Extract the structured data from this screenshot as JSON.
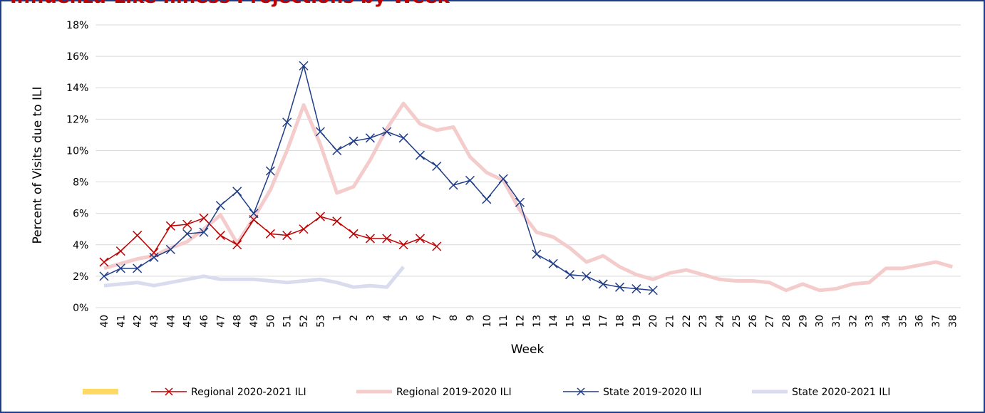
{
  "chart_data": {
    "type": "line",
    "title": "Influenza-Like Illness Projections by Week",
    "x_label": "Week",
    "y_label": "Percent of Visits due to ILI",
    "categories": [
      "40",
      "41",
      "42",
      "43",
      "44",
      "45",
      "46",
      "47",
      "48",
      "49",
      "50",
      "51",
      "52",
      "53",
      "1",
      "2",
      "3",
      "4",
      "5",
      "6",
      "7",
      "8",
      "9",
      "10",
      "11",
      "12",
      "13",
      "14",
      "15",
      "16",
      "17",
      "18",
      "19",
      "20",
      "21",
      "22",
      "23",
      "24",
      "25",
      "26",
      "27",
      "28",
      "29",
      "30",
      "31",
      "32",
      "33",
      "34",
      "35",
      "36",
      "37",
      "38"
    ],
    "ylim": [
      0,
      18
    ],
    "yticks": [
      {
        "value": 0,
        "label": "0%"
      },
      {
        "value": 2,
        "label": "2%"
      },
      {
        "value": 4,
        "label": "4%"
      },
      {
        "value": 6,
        "label": "6%"
      },
      {
        "value": 8,
        "label": "8%"
      },
      {
        "value": 10,
        "label": "10%"
      },
      {
        "value": 12,
        "label": "12%"
      },
      {
        "value": 14,
        "label": "14%"
      },
      {
        "value": 16,
        "label": "16%"
      },
      {
        "value": 18,
        "label": "18%"
      }
    ],
    "grid": true,
    "legend": "bottom",
    "series": [
      {
        "color": "#ffd966",
        "width": 8,
        "marker": false,
        "values": [
          null,
          null,
          null,
          null,
          null,
          null,
          null,
          null,
          null,
          null,
          null,
          null,
          null,
          null,
          null,
          null,
          null,
          null,
          null,
          null,
          null,
          null,
          null,
          null,
          null,
          null,
          null,
          null,
          null,
          null,
          null,
          null,
          null,
          null,
          null,
          null,
          null,
          null,
          null,
          null,
          null,
          null,
          null,
          null,
          null,
          null,
          null,
          null,
          null,
          null,
          null,
          null
        ]
      },
      {
        "name": "Regional 2020-2021 ILI",
        "color": "#c00000",
        "width": 1.5,
        "marker": true,
        "values": [
          2.9,
          3.6,
          4.6,
          3.5,
          5.2,
          5.3,
          5.7,
          4.6,
          4.0,
          5.6,
          4.7,
          4.6,
          5.0,
          5.8,
          5.5,
          4.7,
          4.4,
          4.4,
          4.0,
          4.4,
          3.9,
          null,
          null,
          null,
          null,
          null,
          null,
          null,
          null,
          null,
          null,
          null,
          null,
          null,
          null,
          null,
          null,
          null,
          null,
          null,
          null,
          null,
          null,
          null,
          null,
          null,
          null,
          null,
          null,
          null,
          null,
          null
        ]
      },
      {
        "name": "Regional 2019-2020 ILI",
        "color": "#f4cccc",
        "width": 5,
        "marker": false,
        "values": [
          2.5,
          2.8,
          3.1,
          3.3,
          3.8,
          4.2,
          5.0,
          5.9,
          4.1,
          5.7,
          7.5,
          10.0,
          12.9,
          10.4,
          7.3,
          7.7,
          9.4,
          11.4,
          13.0,
          11.7,
          11.3,
          11.5,
          9.6,
          8.6,
          8.1,
          6.2,
          4.8,
          4.5,
          3.8,
          2.9,
          3.3,
          2.6,
          2.1,
          1.8,
          2.2,
          2.4,
          2.1,
          1.8,
          1.7,
          1.7,
          1.6,
          1.1,
          1.5,
          1.1,
          1.2,
          1.5,
          1.6,
          2.5,
          2.5,
          2.7,
          2.9,
          2.6
        ]
      },
      {
        "name": "State 2019-2020 ILI",
        "color": "#1f3c88",
        "width": 1.5,
        "marker": true,
        "values": [
          2.0,
          2.5,
          2.5,
          3.2,
          3.7,
          4.7,
          4.8,
          6.5,
          7.4,
          6.0,
          8.7,
          11.8,
          15.4,
          11.2,
          10.0,
          10.6,
          10.8,
          11.2,
          10.8,
          9.7,
          9.0,
          7.8,
          8.1,
          6.9,
          8.2,
          6.7,
          3.4,
          2.8,
          2.1,
          2.0,
          1.5,
          1.3,
          1.2,
          1.1,
          null,
          null,
          null,
          null,
          null,
          null,
          null,
          null,
          null,
          null,
          null,
          null,
          null,
          null,
          null,
          null,
          null,
          null
        ]
      },
      {
        "name": "State 2020-2021 ILI",
        "color": "#d9dcee",
        "width": 5,
        "marker": false,
        "values": [
          1.4,
          1.5,
          1.6,
          1.4,
          1.6,
          1.8,
          2.0,
          1.8,
          1.8,
          1.8,
          1.7,
          1.6,
          1.7,
          1.8,
          1.6,
          1.3,
          1.4,
          1.3,
          2.6,
          null,
          null,
          null,
          null,
          null,
          null,
          null,
          null,
          null,
          null,
          null,
          null,
          null,
          null,
          null,
          null,
          null,
          null,
          null,
          null,
          null,
          null,
          null,
          null,
          null,
          null,
          null,
          null,
          null,
          null,
          null,
          null,
          null
        ]
      }
    ]
  }
}
